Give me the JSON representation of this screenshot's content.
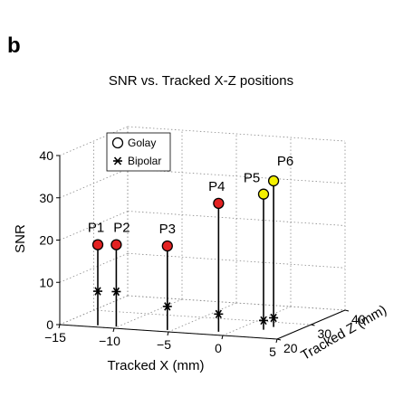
{
  "panel_label": "b",
  "chart_data": {
    "type": "scatter",
    "title": "SNR vs. Tracked X-Z positions",
    "xlabel": "Tracked X (mm)",
    "ylabel": "Tracked Z (mm)",
    "zlabel": "SNR",
    "xlim": [
      -15,
      5
    ],
    "ylim": [
      20,
      40
    ],
    "zlim": [
      0,
      40
    ],
    "x_ticks": [
      "−15",
      "−10",
      "−5",
      "0",
      "5"
    ],
    "y_ticks": [
      "20",
      "30",
      "40"
    ],
    "z_ticks": [
      "0",
      "10",
      "20",
      "30",
      "40"
    ],
    "grid": true,
    "legend_position": "top-left",
    "legend": [
      {
        "label": "Golay",
        "marker": "circle"
      },
      {
        "label": "Bipolar",
        "marker": "asterisk"
      }
    ],
    "points": [
      {
        "label": "P1",
        "x": -11.5,
        "z": 20,
        "snr_golay": 19.5,
        "snr_bipolar": 8.5,
        "color": "#e32222"
      },
      {
        "label": "P2",
        "x": -9.8,
        "z": 20,
        "snr_golay": 19.8,
        "snr_bipolar": 8.7,
        "color": "#e32222"
      },
      {
        "label": "P3",
        "x": -5.1,
        "z": 20,
        "snr_golay": 20.3,
        "snr_bipolar": 6.0,
        "color": "#e32222"
      },
      {
        "label": "P4",
        "x": -0.7,
        "z": 21,
        "snr_golay": 30.8,
        "snr_bipolar": 4.6,
        "color": "#e32222"
      },
      {
        "label": "P5",
        "x": 2.5,
        "z": 24,
        "snr_golay": 32.5,
        "snr_bipolar": 2.6,
        "color": "#f4f000"
      },
      {
        "label": "P6",
        "x": 2.8,
        "z": 26,
        "snr_golay": 35.0,
        "snr_bipolar": 2.6,
        "color": "#f4f000"
      }
    ]
  }
}
